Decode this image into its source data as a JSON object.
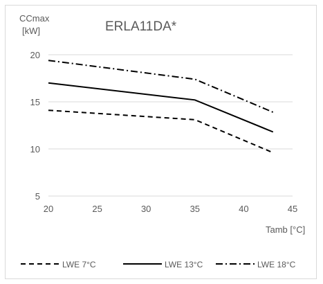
{
  "chart_data": {
    "type": "line",
    "title": "ERLA11DA*",
    "ylabel_line1": "CCmax",
    "ylabel_line2": "[kW]",
    "xlabel": "Tamb [°C]",
    "xlim": [
      20,
      45
    ],
    "ylim": [
      5,
      20
    ],
    "xticks": [
      20,
      25,
      30,
      35,
      40,
      45
    ],
    "yticks": [
      5,
      10,
      15,
      20
    ],
    "grid": "horizontal",
    "legend_position": "bottom",
    "series": [
      {
        "name": "LWE 7°C",
        "style": "dash",
        "x": [
          20,
          35,
          43
        ],
        "y": [
          14.1,
          13.1,
          9.6
        ]
      },
      {
        "name": "LWE 13°C",
        "style": "solid",
        "x": [
          20,
          35,
          43
        ],
        "y": [
          17.0,
          15.2,
          11.8
        ]
      },
      {
        "name": "LWE 18°C",
        "style": "dash-dot",
        "x": [
          20,
          35,
          43
        ],
        "y": [
          19.4,
          17.4,
          13.9
        ]
      }
    ],
    "colors": {
      "line": "#000000",
      "grid": "#d9d9d9",
      "text": "#595959"
    }
  }
}
